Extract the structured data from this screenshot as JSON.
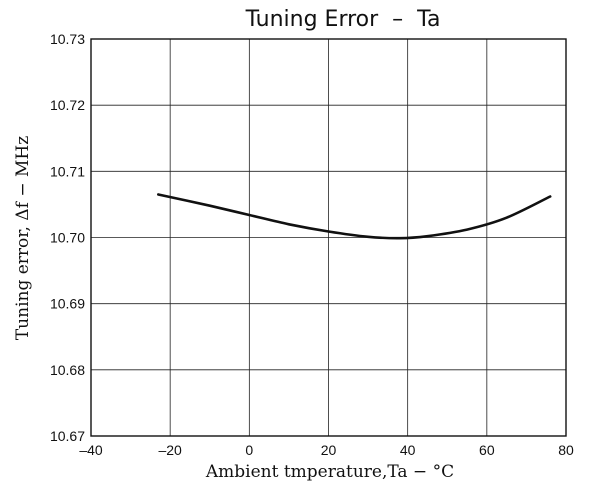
{
  "chart_data": {
    "type": "line",
    "title": "Tuning Error  –  Ta",
    "xlabel": "Ambient tmperature,Ta − °C",
    "ylabel": "Tuning error, Δf − MHz",
    "xlim": [
      -40,
      80
    ],
    "ylim": [
      10.67,
      10.73
    ],
    "x_ticks": [
      "–40",
      "–20",
      "0",
      "20",
      "40",
      "60",
      "80"
    ],
    "y_ticks": [
      "10.73",
      "10.72",
      "10.71",
      "10.70",
      "10.69",
      "10.68",
      "10.67"
    ],
    "grid": true,
    "series": [
      {
        "x": [
          -23,
          -10,
          0,
          10,
          20,
          30,
          38,
          45,
          55,
          65,
          76
        ],
        "y": [
          10.7065,
          10.7048,
          10.7034,
          10.702,
          10.7009,
          10.7001,
          10.6999,
          10.7002,
          10.7012,
          10.703,
          10.7062
        ]
      }
    ]
  }
}
